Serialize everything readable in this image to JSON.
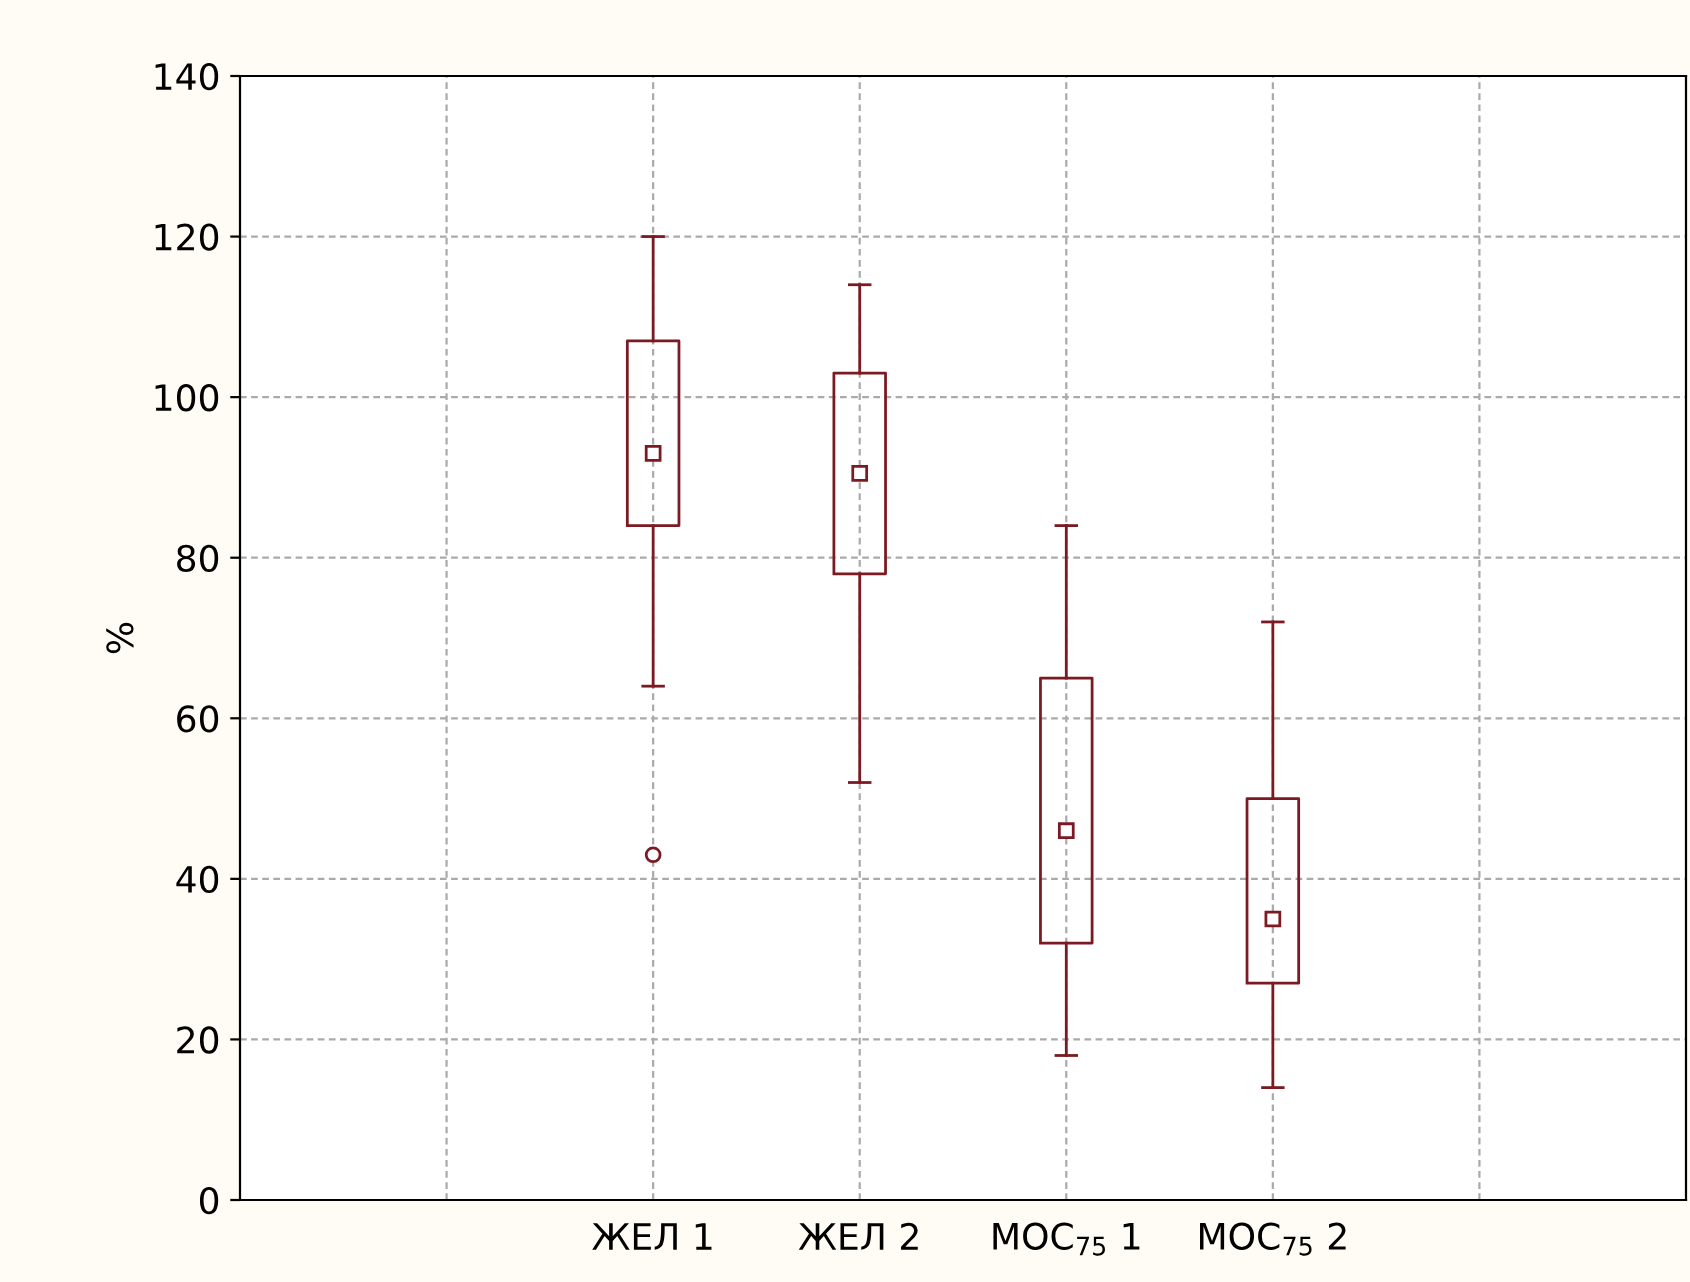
{
  "chart_data": {
    "type": "box",
    "ylabel": "%",
    "categories": [
      null,
      "ЖЕЛ 1",
      "ЖЕЛ 2",
      "МОС$_{75}$ 1",
      "МОС$_{75}$ 2",
      null
    ],
    "boxes": [
      null,
      {
        "low": 64,
        "q1": 84,
        "median": 93,
        "q3": 107,
        "high": 120,
        "outliers": [
          43
        ]
      },
      {
        "low": 52,
        "q1": 78,
        "median": 90.5,
        "q3": 103,
        "high": 114
      },
      {
        "low": 18,
        "q1": 32,
        "median": 46,
        "q3": 65,
        "high": 84
      },
      {
        "low": 14,
        "q1": 27,
        "median": 35,
        "q3": 50,
        "high": 72
      },
      null
    ],
    "color": "#7b1a22",
    "ylim": [
      0,
      140
    ],
    "yticks": [
      0,
      20,
      40,
      60,
      80,
      100,
      120,
      140
    ],
    "grid": true,
    "marker": "square"
  }
}
